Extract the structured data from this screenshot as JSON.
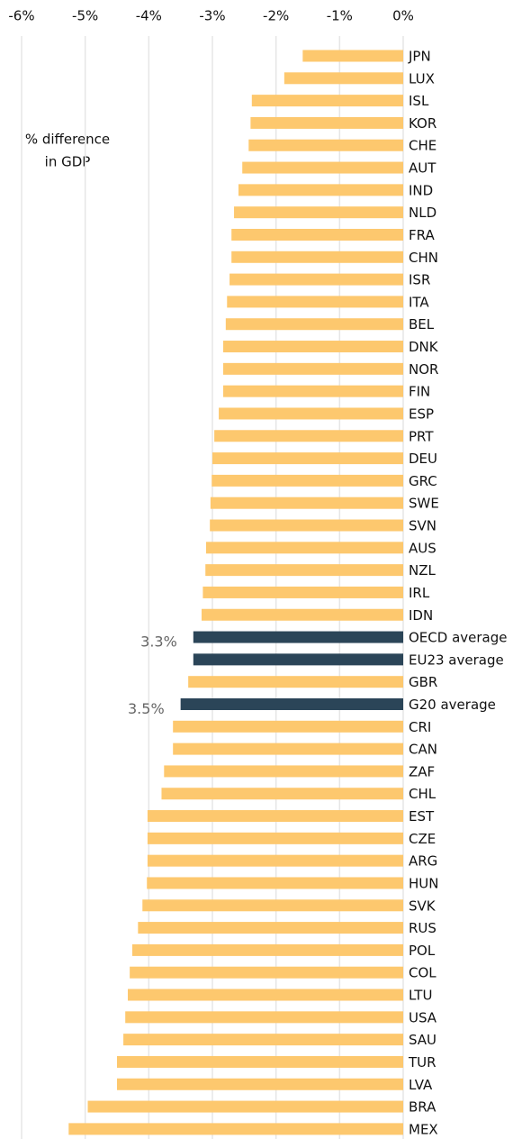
{
  "chart_data": {
    "type": "hbar",
    "annotation": [
      "% difference",
      "in GDP"
    ],
    "categories": [
      "JPN",
      "LUX",
      "ISL",
      "KOR",
      "CHE",
      "AUT",
      "IND",
      "NLD",
      "FRA",
      "CHN",
      "ISR",
      "ITA",
      "BEL",
      "DNK",
      "NOR",
      "FIN",
      "ESP",
      "PRT",
      "DEU",
      "GRC",
      "SWE",
      "SVN",
      "AUS",
      "NZL",
      "IRL",
      "IDN",
      "OECD average",
      "EU23 average",
      "GBR",
      "G20 average",
      "CRI",
      "CAN",
      "ZAF",
      "CHL",
      "EST",
      "CZE",
      "ARG",
      "HUN",
      "SVK",
      "RUS",
      "POL",
      "COL",
      "LTU",
      "USA",
      "SAU",
      "TUR",
      "LVA",
      "BRA",
      "MEX"
    ],
    "values": [
      -1.58,
      -1.87,
      -2.38,
      -2.4,
      -2.43,
      -2.53,
      -2.59,
      -2.66,
      -2.7,
      -2.7,
      -2.73,
      -2.77,
      -2.79,
      -2.83,
      -2.83,
      -2.83,
      -2.9,
      -2.97,
      -3.0,
      -3.01,
      -3.03,
      -3.04,
      -3.1,
      -3.11,
      -3.15,
      -3.17,
      -3.3,
      -3.3,
      -3.38,
      -3.5,
      -3.62,
      -3.62,
      -3.76,
      -3.8,
      -4.02,
      -4.02,
      -4.02,
      -4.03,
      -4.1,
      -4.17,
      -4.26,
      -4.3,
      -4.33,
      -4.37,
      -4.4,
      -4.5,
      -4.5,
      -4.96,
      -5.26
    ],
    "value_labels": [
      null,
      null,
      null,
      null,
      null,
      null,
      null,
      null,
      null,
      null,
      null,
      null,
      null,
      null,
      null,
      null,
      null,
      null,
      null,
      null,
      null,
      null,
      null,
      null,
      null,
      null,
      "3.3%",
      null,
      null,
      "3.5%",
      null,
      null,
      null,
      null,
      null,
      null,
      null,
      null,
      null,
      null,
      null,
      null,
      null,
      null,
      null,
      null,
      null,
      null,
      null
    ],
    "colors": [
      "#fdc86e",
      "#fdc86e",
      "#fdc86e",
      "#fdc86e",
      "#fdc86e",
      "#fdc86e",
      "#fdc86e",
      "#fdc86e",
      "#fdc86e",
      "#fdc86e",
      "#fdc86e",
      "#fdc86e",
      "#fdc86e",
      "#fdc86e",
      "#fdc86e",
      "#fdc86e",
      "#fdc86e",
      "#fdc86e",
      "#fdc86e",
      "#fdc86e",
      "#fdc86e",
      "#fdc86e",
      "#fdc86e",
      "#fdc86e",
      "#fdc86e",
      "#fdc86e",
      "#2b4558",
      "#2b4558",
      "#fdc86e",
      "#2b4558",
      "#fdc86e",
      "#fdc86e",
      "#fdc86e",
      "#fdc86e",
      "#fdc86e",
      "#fdc86e",
      "#fdc86e",
      "#fdc86e",
      "#fdc86e",
      "#fdc86e",
      "#fdc86e",
      "#fdc86e",
      "#fdc86e",
      "#fdc86e",
      "#fdc86e",
      "#fdc86e",
      "#fdc86e",
      "#fdc86e",
      "#fdc86e"
    ],
    "xlim": [
      -6,
      0
    ],
    "xticks": [
      {
        "value": -6,
        "label": "-6%"
      },
      {
        "value": -5,
        "label": "-5%"
      },
      {
        "value": -4,
        "label": "-4%"
      },
      {
        "value": -3,
        "label": "-3%"
      },
      {
        "value": -2,
        "label": "-2%"
      },
      {
        "value": -1,
        "label": "-1%"
      },
      {
        "value": 0,
        "label": "0%"
      }
    ],
    "grid": true
  }
}
